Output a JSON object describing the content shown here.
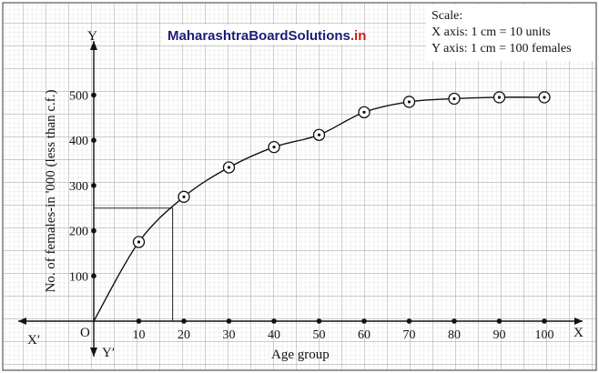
{
  "watermark": {
    "part1": "Maharashtra",
    "part2": "BoardSolutions",
    "part3": ".in",
    "colors": {
      "part1": "#1d1a7a",
      "part2": "#1d1a7a",
      "part3": "#d11919"
    }
  },
  "scale_box": {
    "line1": "Scale:",
    "line2": "X axis: 1 cm = 10 units",
    "line3": "Y axis: 1 cm = 100 females"
  },
  "chart_data": {
    "type": "line",
    "title": "",
    "xlabel": "Age group",
    "ylabel": "No. of females-in '000 (less than c.f.)",
    "x_ticks": [
      10,
      20,
      30,
      40,
      50,
      60,
      70,
      80,
      90,
      100
    ],
    "y_ticks": [
      100,
      200,
      300,
      400,
      500
    ],
    "xlim": [
      0,
      100
    ],
    "ylim": [
      0,
      500
    ],
    "grid": true,
    "axis_labels": {
      "x_pos": "X",
      "x_neg": "X′",
      "y_pos": "Y",
      "y_neg": "Y′",
      "origin": "O"
    },
    "series": [
      {
        "points": [
          [
            0,
            0
          ],
          [
            10,
            175
          ],
          [
            20,
            275
          ],
          [
            30,
            340
          ],
          [
            40,
            385
          ],
          [
            50,
            412
          ],
          [
            60,
            462
          ],
          [
            70,
            485
          ],
          [
            80,
            492
          ],
          [
            90,
            495
          ],
          [
            100,
            495
          ]
        ]
      }
    ],
    "median_guide": {
      "y": 250,
      "x": 17.5
    }
  }
}
